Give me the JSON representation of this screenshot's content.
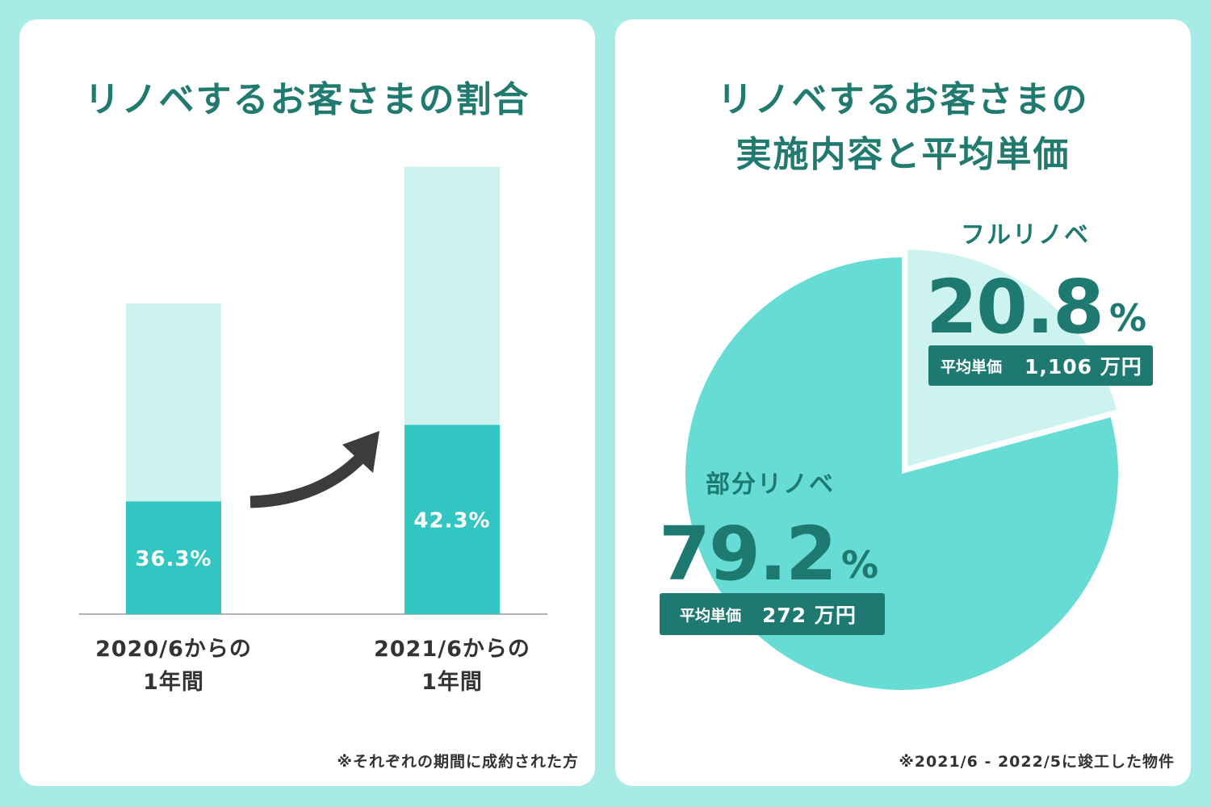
{
  "colors": {
    "background": "#a6ebe6",
    "title": "#217a70",
    "bar_dark": "#31c6c1",
    "bar_light": "#cdf3f0",
    "pie_main": "#66dcd5",
    "pie_light": "#cdf3f0",
    "label_dark": "#1e7a71",
    "badge_bg": "#1e7a71",
    "arrow": "#3c3c3c"
  },
  "left_panel": {
    "title": "リノベするお客さまの割合",
    "note": "※それぞれの期間に成約された方"
  },
  "right_panel": {
    "title_line1": "リノベするお客さまの",
    "title_line2": "実施内容と平均単価",
    "note": "※2021/6 - 2022/5に竣工した物件"
  },
  "chart_data": [
    {
      "type": "bar",
      "stacked": true,
      "categories": [
        [
          "2020/6からの",
          "1年間"
        ],
        [
          "2021/6からの",
          "1年間"
        ]
      ],
      "series": [
        {
          "values": [
            36.3,
            42.3
          ],
          "labels": [
            "36.3%",
            "42.3%"
          ],
          "color": "#31c6c1"
        }
      ],
      "relative_bar_totals": [
        1.0,
        1.44
      ],
      "annotation": "increase-arrow"
    },
    {
      "type": "pie",
      "slices": [
        {
          "name": "フルリノベ",
          "value": 20.8,
          "value_text": "20.8",
          "unit": "%",
          "price_label": "平均単価",
          "price": "1,106 万円",
          "exploded": true,
          "color": "#cdf3f0"
        },
        {
          "name": "部分リノベ",
          "value": 79.2,
          "value_text": "79.2",
          "unit": "%",
          "price_label": "平均単価",
          "price": "272 万円",
          "exploded": false,
          "color": "#66dcd5"
        }
      ]
    }
  ]
}
